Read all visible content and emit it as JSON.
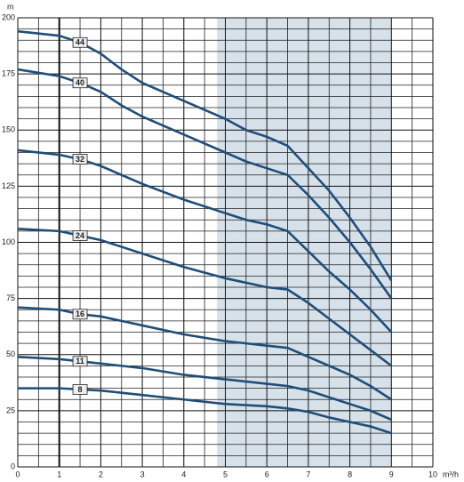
{
  "chart_data": {
    "type": "line",
    "y_label": "m",
    "x_label": "m³/h",
    "x": [
      0,
      1,
      1.5,
      2,
      2.5,
      3,
      4,
      5,
      5.5,
      6,
      6.5,
      7,
      7.5,
      8,
      8.5,
      9
    ],
    "series": [
      {
        "name": "44",
        "color": "#1f4e79",
        "values": [
          194,
          192,
          189,
          184,
          177,
          171,
          163,
          155,
          150,
          147,
          143,
          133,
          123,
          111,
          98,
          83
        ]
      },
      {
        "name": "40",
        "color": "#1f4e79",
        "values": [
          177,
          174,
          171,
          167,
          161,
          156,
          148,
          140,
          136,
          133,
          130,
          121,
          111,
          100,
          88,
          75
        ]
      },
      {
        "name": "32",
        "color": "#1f4e79",
        "values": [
          141,
          139,
          137,
          134,
          130,
          126,
          119,
          113,
          110,
          108,
          105,
          96,
          87,
          79,
          70,
          60
        ]
      },
      {
        "name": "24",
        "color": "#1f4e79",
        "values": [
          106,
          105,
          103,
          101,
          98,
          95,
          89,
          84,
          82,
          80,
          79,
          73,
          66,
          59,
          52,
          45
        ]
      },
      {
        "name": "16",
        "color": "#1f4e79",
        "values": [
          71,
          70,
          68,
          67,
          65,
          63,
          59,
          56,
          55,
          54,
          53,
          49,
          45,
          41,
          36,
          30
        ]
      },
      {
        "name": "11",
        "color": "#1f4e79",
        "values": [
          49,
          48,
          47,
          46,
          45,
          44,
          41,
          39,
          38,
          37,
          36,
          34,
          31,
          28,
          25,
          21
        ]
      },
      {
        "name": "8",
        "color": "#1f4e79",
        "values": [
          35,
          35,
          34.5,
          34,
          33,
          32,
          30,
          28,
          27.5,
          27,
          26,
          24.5,
          22,
          20,
          18,
          15
        ]
      }
    ],
    "label_x": 1.5,
    "shaded_range": [
      4.8,
      9
    ],
    "shade_color": "#d6e1ea",
    "xlim": [
      0,
      10
    ],
    "xticks": [
      0,
      1,
      2,
      3,
      4,
      5,
      6,
      7,
      8,
      9,
      10
    ],
    "ylim": [
      0,
      200
    ],
    "yticks": [
      0,
      25,
      50,
      75,
      100,
      125,
      150,
      175,
      200
    ],
    "grid": true
  }
}
